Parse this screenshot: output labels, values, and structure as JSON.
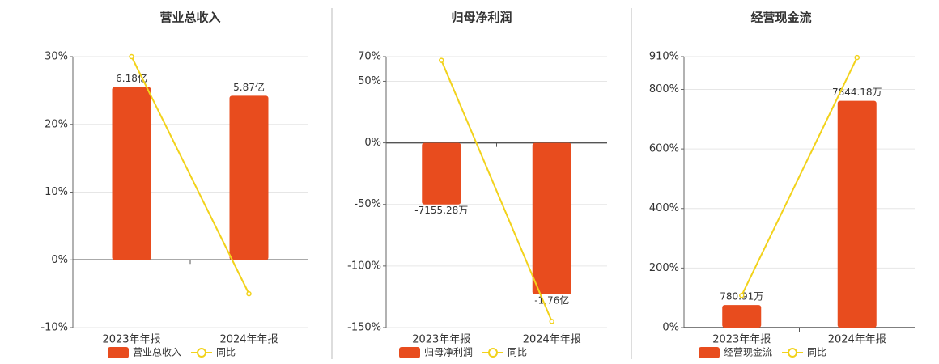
{
  "chart_data": [
    {
      "type": "bar",
      "title": "营业总收入",
      "categories": [
        "2023年年报",
        "2024年年报"
      ],
      "series": [
        {
          "name": "营业总收入",
          "color": "#e84c1e",
          "axis": "y2",
          "values": [
            618000000,
            587000000
          ],
          "value_labels": [
            "6.18亿",
            "5.87亿"
          ]
        },
        {
          "name": "同比",
          "color": "#f2d21b",
          "type": "line",
          "values": [
            30,
            -5
          ]
        }
      ],
      "ylim": [
        -10,
        30
      ],
      "yticks": [
        {
          "value": -10,
          "label": "-10%"
        },
        {
          "value": 0,
          "label": "0%"
        },
        {
          "value": 10,
          "label": "10%"
        },
        {
          "value": 20,
          "label": "20%"
        },
        {
          "value": 30,
          "label": "30%"
        }
      ],
      "y2lim": [
        -242000000,
        727000000
      ],
      "grid": true
    },
    {
      "type": "bar",
      "title": "归母净利润",
      "categories": [
        "2023年年报",
        "2024年年报"
      ],
      "series": [
        {
          "name": "归母净利润",
          "color": "#e84c1e",
          "axis": "y2",
          "values": [
            -71552800,
            -176000000
          ],
          "value_labels": [
            "-7155.28万",
            "-1.76亿"
          ]
        },
        {
          "name": "同比",
          "color": "#f2d21b",
          "type": "line",
          "values": [
            67,
            -145
          ]
        }
      ],
      "ylim": [
        -150,
        70
      ],
      "yticks": [
        {
          "value": -150,
          "label": "-150%"
        },
        {
          "value": -100,
          "label": "-100%"
        },
        {
          "value": -50,
          "label": "-50%"
        },
        {
          "value": 0,
          "label": "0%"
        },
        {
          "value": 50,
          "label": "50%"
        },
        {
          "value": 70,
          "label": "70%"
        }
      ],
      "y2lim": [
        -214700000,
        100200000
      ],
      "grid": true
    },
    {
      "type": "bar",
      "title": "经营现金流",
      "categories": [
        "2023年年报",
        "2024年年报"
      ],
      "series": [
        {
          "name": "经营现金流",
          "color": "#e84c1e",
          "axis": "y2",
          "values": [
            7809100,
            78441800
          ],
          "value_labels": [
            "780.91万",
            "7844.18万"
          ]
        },
        {
          "name": "同比",
          "color": "#f2d21b",
          "type": "line",
          "values": [
            108,
            907
          ]
        }
      ],
      "ylim": [
        0,
        910
      ],
      "yticks": [
        {
          "value": 0,
          "label": "0%"
        },
        {
          "value": 200,
          "label": "200%"
        },
        {
          "value": 400,
          "label": "400%"
        },
        {
          "value": 600,
          "label": "600%"
        },
        {
          "value": 800,
          "label": "800%"
        },
        {
          "value": 910,
          "label": "910%"
        }
      ],
      "y2lim": [
        0,
        93710000
      ],
      "grid": true
    }
  ]
}
